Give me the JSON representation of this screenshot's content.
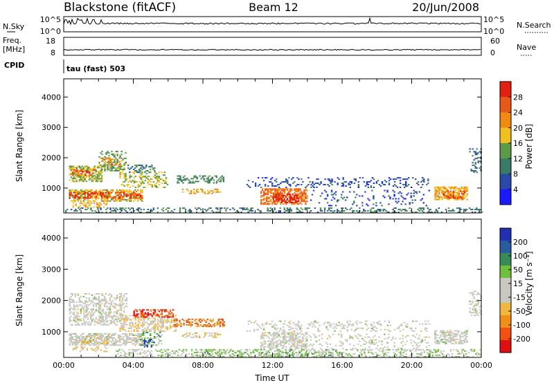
{
  "header": {
    "station": "Blackstone (fitACF)",
    "beam": "Beam 12",
    "date": "20/Jun/2008"
  },
  "top_panels": {
    "nsky_label": "N.Sky",
    "nsky_ticks": [
      "10^5",
      "10^0"
    ],
    "nsearch_label": "N.Search",
    "nsearch_ticks": [
      "10^5",
      "10^0"
    ],
    "freq_label": "Freq.",
    "freq_unit": "[MHz]",
    "freq_ticks": [
      "18",
      "8"
    ],
    "nave_label": "Nave",
    "nave_ticks": [
      "60",
      "0"
    ],
    "cpid_label": "CPID",
    "cpid_value": "tau (fast) 503"
  },
  "colors": {
    "power": [
      "#1a1aff",
      "#2a4aa8",
      "#3a7a68",
      "#5a9a48",
      "#f0c020",
      "#f08a10",
      "#e85818",
      "#e02010"
    ],
    "velocity": [
      "#e01010",
      "#f05010",
      "#f0901a",
      "#f0b840",
      "#c8c8c0",
      "#c8c8c0",
      "#70c040",
      "#3a8a58",
      "#2a5aa0",
      "#2030b0"
    ]
  },
  "chart_data": [
    {
      "type": "heatmap",
      "title": "Power",
      "ylabel": "Slant Range [km]",
      "ylim": [
        180,
        4600
      ],
      "yticks": [
        "4000",
        "3000",
        "2000",
        "1000"
      ],
      "xlim": [
        0,
        24
      ],
      "colorbar": {
        "label": "Power [dB]",
        "ticks": [
          "28",
          "24",
          "20",
          "16",
          "12",
          "8",
          "4"
        ],
        "range": [
          0,
          32
        ]
      },
      "regions": [
        {
          "t0": 0.3,
          "t1": 2.2,
          "r0": 1200,
          "r1": 1700,
          "v": 16,
          "d": 0.65
        },
        {
          "t0": 0.4,
          "t1": 1.8,
          "r0": 1400,
          "r1": 1600,
          "v": 26,
          "d": 0.35
        },
        {
          "t0": 2.0,
          "t1": 3.6,
          "r0": 1550,
          "r1": 2200,
          "v": 14,
          "d": 0.4
        },
        {
          "t0": 2.2,
          "t1": 3.2,
          "r0": 1700,
          "r1": 2000,
          "v": 22,
          "d": 0.3
        },
        {
          "t0": 0.3,
          "t1": 4.5,
          "r0": 550,
          "r1": 950,
          "v": 18,
          "d": 0.65
        },
        {
          "t0": 0.3,
          "t1": 4.5,
          "r0": 650,
          "r1": 850,
          "v": 28,
          "d": 0.4
        },
        {
          "t0": 0.5,
          "t1": 2.5,
          "r0": 350,
          "r1": 500,
          "v": 20,
          "d": 0.4
        },
        {
          "t0": 3.2,
          "t1": 6.0,
          "r0": 1000,
          "r1": 1500,
          "v": 16,
          "d": 0.35
        },
        {
          "t0": 3.5,
          "t1": 5.2,
          "r0": 1500,
          "r1": 1750,
          "v": 10,
          "d": 0.3
        },
        {
          "t0": 6.5,
          "t1": 9.2,
          "r0": 1150,
          "r1": 1400,
          "v": 12,
          "d": 0.4
        },
        {
          "t0": 6.8,
          "t1": 9.0,
          "r0": 800,
          "r1": 950,
          "v": 20,
          "d": 0.35
        },
        {
          "t0": 11.3,
          "t1": 14.0,
          "r0": 450,
          "r1": 950,
          "v": 24,
          "d": 0.6
        },
        {
          "t0": 12.0,
          "t1": 13.5,
          "r0": 500,
          "r1": 800,
          "v": 30,
          "d": 0.55
        },
        {
          "t0": 10.5,
          "t1": 21.0,
          "r0": 1000,
          "r1": 1350,
          "v": 6,
          "d": 0.18
        },
        {
          "t0": 14.0,
          "t1": 21.0,
          "r0": 400,
          "r1": 900,
          "v": 6,
          "d": 0.1
        },
        {
          "t0": 21.3,
          "t1": 23.2,
          "r0": 600,
          "r1": 1050,
          "v": 20,
          "d": 0.65
        },
        {
          "t0": 21.8,
          "t1": 23.0,
          "r0": 650,
          "r1": 900,
          "v": 28,
          "d": 0.4
        },
        {
          "t0": 23.3,
          "t1": 24.0,
          "r0": 1500,
          "r1": 2300,
          "v": 8,
          "d": 0.3
        },
        {
          "t0": 0.0,
          "t1": 24.0,
          "r0": 180,
          "r1": 350,
          "v": 10,
          "d": 0.28
        }
      ]
    },
    {
      "type": "heatmap",
      "title": "Velocity",
      "ylabel": "Slant Range [km]",
      "ylim": [
        180,
        4600
      ],
      "yticks": [
        "4000",
        "3000",
        "2000",
        "1000"
      ],
      "xlim": [
        0,
        24
      ],
      "xticks": [
        "00:00",
        "04:00",
        "08:00",
        "12:00",
        "16:00",
        "20:00",
        "00:00"
      ],
      "xlabel": "Time UT",
      "colorbar": {
        "label": "Velocity [m s⁻¹]",
        "ticks": [
          "200",
          "100",
          "50",
          "15",
          "-15",
          "-50",
          "-100",
          "-200"
        ],
        "range": [
          -250,
          250
        ]
      },
      "regions": [
        {
          "t0": 0.3,
          "t1": 3.6,
          "r0": 1200,
          "r1": 2200,
          "v": 0,
          "d": 0.45
        },
        {
          "t0": 0.3,
          "t1": 4.5,
          "r0": 550,
          "r1": 950,
          "v": 0,
          "d": 0.6
        },
        {
          "t0": 1.0,
          "t1": 2.6,
          "r0": 600,
          "r1": 900,
          "v": -70,
          "d": 0.25
        },
        {
          "t0": 0.5,
          "t1": 2.5,
          "r0": 350,
          "r1": 500,
          "v": -60,
          "d": 0.3
        },
        {
          "t0": 3.2,
          "t1": 6.5,
          "r0": 1000,
          "r1": 1500,
          "v": -40,
          "d": 0.45
        },
        {
          "t0": 4.0,
          "t1": 6.3,
          "r0": 1450,
          "r1": 1700,
          "v": -190,
          "d": 0.5
        },
        {
          "t0": 4.3,
          "t1": 5.6,
          "r0": 550,
          "r1": 1000,
          "v": 80,
          "d": 0.4
        },
        {
          "t0": 4.6,
          "t1": 5.2,
          "r0": 500,
          "r1": 750,
          "v": 200,
          "d": 0.35
        },
        {
          "t0": 6.3,
          "t1": 9.2,
          "r0": 1150,
          "r1": 1400,
          "v": -140,
          "d": 0.45
        },
        {
          "t0": 6.8,
          "t1": 9.0,
          "r0": 800,
          "r1": 950,
          "v": -60,
          "d": 0.35
        },
        {
          "t0": 10.5,
          "t1": 21.0,
          "r0": 1000,
          "r1": 1350,
          "v": 0,
          "d": 0.2
        },
        {
          "t0": 11.3,
          "t1": 14.0,
          "r0": 450,
          "r1": 950,
          "v": 0,
          "d": 0.55
        },
        {
          "t0": 14.0,
          "t1": 21.0,
          "r0": 400,
          "r1": 900,
          "v": 0,
          "d": 0.15
        },
        {
          "t0": 21.3,
          "t1": 23.2,
          "r0": 600,
          "r1": 1050,
          "v": 0,
          "d": 0.6
        },
        {
          "t0": 23.3,
          "t1": 24.0,
          "r0": 1500,
          "r1": 2300,
          "v": 0,
          "d": 0.3
        },
        {
          "t0": 3.0,
          "t1": 24.0,
          "r0": 180,
          "r1": 420,
          "v": 40,
          "d": 0.3
        },
        {
          "t0": 8.0,
          "t1": 16.0,
          "r0": 180,
          "r1": 420,
          "v": 60,
          "d": 0.25
        }
      ]
    }
  ]
}
